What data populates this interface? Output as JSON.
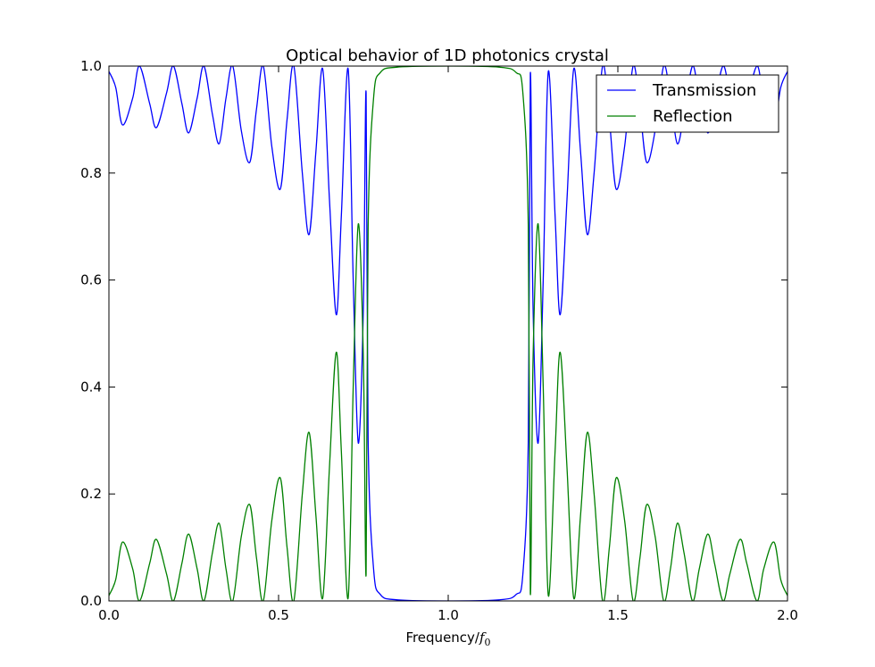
{
  "chart_data": {
    "type": "line",
    "title": "Optical behavior of 1D photonics crystal",
    "xlabel": "Frequency/",
    "xlabel_math": "f",
    "xlabel_sub": "0",
    "ylabel": "",
    "xlim": [
      0.0,
      2.0
    ],
    "ylim": [
      0.0,
      1.0
    ],
    "xticks": [
      {
        "value": 0.0,
        "label": "0.0"
      },
      {
        "value": 0.5,
        "label": "0.5"
      },
      {
        "value": 1.0,
        "label": "1.0"
      },
      {
        "value": 1.5,
        "label": "1.5"
      },
      {
        "value": 2.0,
        "label": "2.0"
      }
    ],
    "yticks": [
      {
        "value": 0.0,
        "label": "0.0"
      },
      {
        "value": 0.2,
        "label": "0.2"
      },
      {
        "value": 0.4,
        "label": "0.4"
      },
      {
        "value": 0.6,
        "label": "0.6"
      },
      {
        "value": 0.8,
        "label": "0.8"
      },
      {
        "value": 1.0,
        "label": "1.0"
      }
    ],
    "grid": false,
    "legend_position": "top-right",
    "series": [
      {
        "name": "Transmission",
        "color": "#0000ff",
        "points": [
          [
            0.0,
            0.99
          ],
          [
            0.02,
            0.96
          ],
          [
            0.04,
            0.89
          ],
          [
            0.07,
            0.94
          ],
          [
            0.09,
            1.0
          ],
          [
            0.12,
            0.93
          ],
          [
            0.14,
            0.885
          ],
          [
            0.17,
            0.95
          ],
          [
            0.19,
            1.0
          ],
          [
            0.215,
            0.93
          ],
          [
            0.235,
            0.875
          ],
          [
            0.26,
            0.94
          ],
          [
            0.28,
            1.0
          ],
          [
            0.305,
            0.91
          ],
          [
            0.325,
            0.855
          ],
          [
            0.345,
            0.94
          ],
          [
            0.365,
            1.0
          ],
          [
            0.39,
            0.88
          ],
          [
            0.415,
            0.82
          ],
          [
            0.435,
            0.92
          ],
          [
            0.455,
            1.0
          ],
          [
            0.48,
            0.85
          ],
          [
            0.505,
            0.77
          ],
          [
            0.525,
            0.9
          ],
          [
            0.545,
            1.0
          ],
          [
            0.57,
            0.8
          ],
          [
            0.59,
            0.685
          ],
          [
            0.61,
            0.84
          ],
          [
            0.63,
            0.995
          ],
          [
            0.65,
            0.75
          ],
          [
            0.67,
            0.535
          ],
          [
            0.685,
            0.72
          ],
          [
            0.705,
            0.995
          ],
          [
            0.72,
            0.6
          ],
          [
            0.735,
            0.295
          ],
          [
            0.75,
            0.55
          ],
          [
            0.758,
            0.95
          ],
          [
            0.764,
            0.3
          ],
          [
            0.78,
            0.06
          ],
          [
            0.8,
            0.012
          ],
          [
            0.85,
            0.002
          ],
          [
            1.0,
            0.0
          ],
          [
            1.15,
            0.002
          ],
          [
            1.2,
            0.012
          ],
          [
            1.22,
            0.05
          ],
          [
            1.236,
            0.3
          ],
          [
            1.242,
            0.985
          ],
          [
            1.25,
            0.55
          ],
          [
            1.265,
            0.295
          ],
          [
            1.28,
            0.6
          ],
          [
            1.295,
            0.99
          ],
          [
            1.315,
            0.72
          ],
          [
            1.33,
            0.535
          ],
          [
            1.35,
            0.75
          ],
          [
            1.37,
            0.995
          ],
          [
            1.39,
            0.84
          ],
          [
            1.41,
            0.685
          ],
          [
            1.43,
            0.8
          ],
          [
            1.455,
            1.0
          ],
          [
            1.475,
            0.9
          ],
          [
            1.495,
            0.77
          ],
          [
            1.52,
            0.85
          ],
          [
            1.545,
            1.0
          ],
          [
            1.565,
            0.92
          ],
          [
            1.585,
            0.82
          ],
          [
            1.61,
            0.88
          ],
          [
            1.635,
            1.0
          ],
          [
            1.655,
            0.94
          ],
          [
            1.675,
            0.855
          ],
          [
            1.695,
            0.91
          ],
          [
            1.72,
            1.0
          ],
          [
            1.74,
            0.94
          ],
          [
            1.765,
            0.875
          ],
          [
            1.785,
            0.93
          ],
          [
            1.81,
            1.0
          ],
          [
            1.83,
            0.95
          ],
          [
            1.86,
            0.885
          ],
          [
            1.88,
            0.93
          ],
          [
            1.91,
            1.0
          ],
          [
            1.93,
            0.94
          ],
          [
            1.96,
            0.89
          ],
          [
            1.98,
            0.96
          ],
          [
            2.0,
            0.99
          ]
        ]
      },
      {
        "name": "Reflection",
        "color": "#008000",
        "points": [
          [
            0.0,
            0.01
          ],
          [
            0.02,
            0.04
          ],
          [
            0.04,
            0.11
          ],
          [
            0.07,
            0.06
          ],
          [
            0.09,
            0.0
          ],
          [
            0.12,
            0.07
          ],
          [
            0.14,
            0.115
          ],
          [
            0.17,
            0.05
          ],
          [
            0.19,
            0.0
          ],
          [
            0.215,
            0.07
          ],
          [
            0.235,
            0.125
          ],
          [
            0.26,
            0.06
          ],
          [
            0.28,
            0.0
          ],
          [
            0.305,
            0.09
          ],
          [
            0.325,
            0.145
          ],
          [
            0.345,
            0.06
          ],
          [
            0.365,
            0.0
          ],
          [
            0.39,
            0.12
          ],
          [
            0.415,
            0.18
          ],
          [
            0.435,
            0.08
          ],
          [
            0.455,
            0.0
          ],
          [
            0.48,
            0.15
          ],
          [
            0.505,
            0.23
          ],
          [
            0.525,
            0.1
          ],
          [
            0.545,
            0.0
          ],
          [
            0.57,
            0.2
          ],
          [
            0.59,
            0.315
          ],
          [
            0.61,
            0.16
          ],
          [
            0.63,
            0.005
          ],
          [
            0.65,
            0.25
          ],
          [
            0.67,
            0.465
          ],
          [
            0.685,
            0.28
          ],
          [
            0.705,
            0.005
          ],
          [
            0.72,
            0.4
          ],
          [
            0.735,
            0.705
          ],
          [
            0.75,
            0.45
          ],
          [
            0.758,
            0.05
          ],
          [
            0.764,
            0.7
          ],
          [
            0.78,
            0.94
          ],
          [
            0.8,
            0.988
          ],
          [
            0.85,
            0.998
          ],
          [
            1.0,
            1.0
          ],
          [
            1.15,
            0.998
          ],
          [
            1.2,
            0.988
          ],
          [
            1.22,
            0.95
          ],
          [
            1.236,
            0.7
          ],
          [
            1.242,
            0.015
          ],
          [
            1.25,
            0.45
          ],
          [
            1.265,
            0.705
          ],
          [
            1.28,
            0.4
          ],
          [
            1.295,
            0.01
          ],
          [
            1.315,
            0.28
          ],
          [
            1.33,
            0.465
          ],
          [
            1.35,
            0.25
          ],
          [
            1.37,
            0.005
          ],
          [
            1.39,
            0.16
          ],
          [
            1.41,
            0.315
          ],
          [
            1.43,
            0.2
          ],
          [
            1.455,
            0.0
          ],
          [
            1.475,
            0.1
          ],
          [
            1.495,
            0.23
          ],
          [
            1.52,
            0.15
          ],
          [
            1.545,
            0.0
          ],
          [
            1.565,
            0.08
          ],
          [
            1.585,
            0.18
          ],
          [
            1.61,
            0.12
          ],
          [
            1.635,
            0.0
          ],
          [
            1.655,
            0.06
          ],
          [
            1.675,
            0.145
          ],
          [
            1.695,
            0.09
          ],
          [
            1.72,
            0.0
          ],
          [
            1.74,
            0.06
          ],
          [
            1.765,
            0.125
          ],
          [
            1.785,
            0.07
          ],
          [
            1.81,
            0.0
          ],
          [
            1.83,
            0.05
          ],
          [
            1.86,
            0.115
          ],
          [
            1.88,
            0.07
          ],
          [
            1.91,
            0.0
          ],
          [
            1.93,
            0.06
          ],
          [
            1.96,
            0.11
          ],
          [
            1.98,
            0.04
          ],
          [
            2.0,
            0.01
          ]
        ]
      }
    ]
  }
}
